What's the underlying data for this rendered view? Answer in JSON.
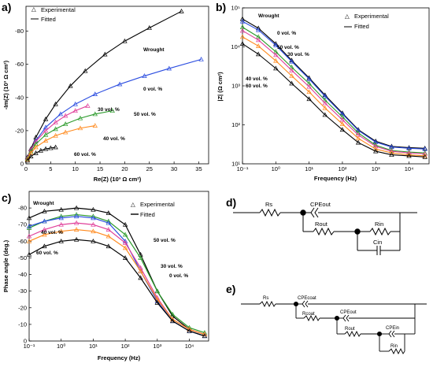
{
  "chart_data": [
    {
      "panel": "a)",
      "type": "scatter",
      "xlabel": "Re(Z) (10³ Ω cm²)",
      "ylabel": "-Im(Z) (10³ Ω cm²)",
      "xlim": [
        0,
        37
      ],
      "ylim": [
        0,
        -95
      ],
      "xticks": [
        0,
        5,
        10,
        15,
        20,
        25,
        30,
        35
      ],
      "yticks": [
        0,
        -20,
        -40,
        -60,
        -80
      ],
      "legend": [
        "Experimental",
        "Fitted"
      ],
      "legend_position": "top-left",
      "series": [
        {
          "name": "Wrought",
          "color": "#000000",
          "x": [
            0.3,
            1,
            2,
            4,
            6,
            9,
            12,
            16,
            20,
            25,
            31.5
          ],
          "y": [
            -4,
            -9,
            -16,
            -27,
            -36,
            -47,
            -56,
            -66,
            -74,
            -82,
            -92
          ]
        },
        {
          "name": "0 vol. %",
          "color": "#2b4de0",
          "x": [
            0.3,
            1,
            2,
            4,
            7,
            10,
            14,
            19,
            24,
            29,
            35.5
          ],
          "y": [
            -3.5,
            -8.5,
            -14,
            -22,
            -30,
            -36,
            -42,
            -48,
            -53,
            -57.5,
            -63
          ]
        },
        {
          "name": "30 vol. %",
          "color": "#e0409a",
          "x": [
            0.3,
            1,
            2,
            4,
            6,
            8,
            10,
            12.5
          ],
          "y": [
            -3.5,
            -8.5,
            -13.5,
            -20,
            -25,
            -29,
            -32,
            -35
          ]
        },
        {
          "name": "50 vol. %",
          "color": "#2a9a2a",
          "x": [
            0.3,
            1,
            2,
            4,
            6,
            8,
            11,
            14,
            17.5
          ],
          "y": [
            -3,
            -7.5,
            -12,
            -17.5,
            -21,
            -24,
            -27.5,
            -30,
            -32
          ]
        },
        {
          "name": "40 vol. %",
          "color": "#ff8a1e",
          "x": [
            0.3,
            1,
            2,
            4,
            6,
            8,
            11,
            14
          ],
          "y": [
            -2.5,
            -6.5,
            -10,
            -14,
            -17,
            -19,
            -21.5,
            -23
          ]
        },
        {
          "name": "60 vol. %",
          "color": "#000000",
          "x": [
            0.3,
            1,
            2,
            3,
            4,
            5,
            6
          ],
          "y": [
            -2,
            -4.5,
            -6.5,
            -8,
            -9,
            -9.5,
            -10
          ]
        }
      ],
      "annotations": [
        "Wrought",
        "0 vol. %",
        "30 vol. %",
        "50 vol. %",
        "40 vol. %",
        "60 vol. %"
      ]
    },
    {
      "panel": "b)",
      "type": "scatter",
      "xlabel": "Frequency (Hz)",
      "ylabel": "|Z| (Ω cm²)",
      "xscale": "log",
      "yscale": "log",
      "xlim": [
        0.1,
        40000
      ],
      "ylim": [
        10,
        100000
      ],
      "xticks": [
        "10⁻¹",
        "10⁰",
        "10¹",
        "10²",
        "10³",
        "10⁴"
      ],
      "yticks": [
        "10¹",
        "10²",
        "10³",
        "10⁴",
        "10⁵"
      ],
      "legend": [
        "Experimental",
        "Fitted"
      ],
      "legend_position": "top-right",
      "series": [
        {
          "name": "Wrought",
          "color": "#000000",
          "x": [
            0.1,
            0.3,
            1,
            3,
            10,
            30,
            100,
            300,
            1000,
            3000,
            10000,
            30000
          ],
          "y": [
            52000,
            30000,
            12000,
            4500,
            1600,
            580,
            200,
            75,
            38,
            28,
            26,
            25
          ]
        },
        {
          "name": "0 vol. %",
          "color": "#2b4de0",
          "x": [
            0.1,
            0.3,
            1,
            3,
            10,
            30,
            100,
            300,
            1000,
            3000,
            10000,
            30000
          ],
          "y": [
            45000,
            27000,
            11000,
            4200,
            1500,
            540,
            190,
            72,
            36,
            27,
            25,
            24
          ]
        },
        {
          "name": "50 vol. %",
          "color": "#2a9a2a",
          "x": [
            0.1,
            0.3,
            1,
            3,
            10,
            30,
            100,
            300,
            1000,
            3000,
            10000,
            30000
          ],
          "y": [
            32000,
            18000,
            7500,
            3000,
            1150,
            430,
            160,
            62,
            30,
            22,
            20,
            19
          ]
        },
        {
          "name": "30 vol. %",
          "color": "#e0409a",
          "x": [
            0.1,
            0.3,
            1,
            3,
            10,
            30,
            100,
            300,
            1000,
            3000,
            10000,
            30000
          ],
          "y": [
            26000,
            15000,
            6200,
            2500,
            950,
            360,
            135,
            55,
            28,
            21,
            19,
            18
          ]
        },
        {
          "name": "40 vol. %",
          "color": "#ff8a1e",
          "x": [
            0.1,
            0.3,
            1,
            3,
            10,
            30,
            100,
            300,
            1000,
            3000,
            10000,
            30000
          ],
          "y": [
            18000,
            10500,
            4400,
            1800,
            700,
            270,
            105,
            45,
            24,
            19,
            17,
            16
          ]
        },
        {
          "name": "60 vol. %",
          "color": "#000000",
          "x": [
            0.1,
            0.3,
            1,
            3,
            10,
            30,
            100,
            300,
            1000,
            3000,
            10000,
            30000
          ],
          "y": [
            12000,
            6500,
            2800,
            1150,
            460,
            180,
            75,
            35,
            21,
            17,
            16,
            15
          ]
        }
      ],
      "annotations": [
        "Wrought",
        "0 vol. %",
        "50 vol. %",
        "30 vol. %",
        "40 vol. %",
        "60 vol. %"
      ]
    },
    {
      "panel": "c)",
      "type": "scatter",
      "xlabel": "Frequency (Hz)",
      "ylabel": "Phase angle (deg.)",
      "xscale": "log",
      "xlim": [
        0.1,
        40000
      ],
      "ylim": [
        0,
        -90
      ],
      "xticks": [
        "10⁻¹",
        "10⁰",
        "10¹",
        "10²",
        "10³",
        "10⁴"
      ],
      "yticks": [
        0,
        -10,
        -20,
        -30,
        -40,
        -50,
        -60,
        -70,
        -80
      ],
      "legend": [
        "Experimental",
        "Fitted"
      ],
      "legend_position": "top-right",
      "series": [
        {
          "name": "Wrought",
          "color": "#000000",
          "x": [
            0.1,
            0.3,
            1,
            3,
            10,
            30,
            100,
            300,
            1000,
            3000,
            10000,
            30000
          ],
          "y": [
            -74,
            -78,
            -79,
            -80,
            -79,
            -77,
            -70,
            -52,
            -30,
            -15,
            -7,
            -4
          ]
        },
        {
          "name": "50 vol. %",
          "color": "#2a9a2a",
          "x": [
            0.1,
            0.3,
            1,
            3,
            10,
            30,
            100,
            300,
            1000,
            3000,
            10000,
            30000
          ],
          "y": [
            -68,
            -72,
            -75,
            -76,
            -75,
            -72,
            -64,
            -50,
            -30,
            -16,
            -8,
            -5
          ]
        },
        {
          "name": "0 vol. %",
          "color": "#2b4de0",
          "x": [
            0.1,
            0.3,
            1,
            3,
            10,
            30,
            100,
            300,
            1000,
            3000,
            10000,
            30000
          ],
          "y": [
            -69,
            -72,
            -74,
            -75,
            -74,
            -71,
            -60,
            -42,
            -24,
            -12,
            -6,
            -3
          ]
        },
        {
          "name": "30 vol. %",
          "color": "#e0409a",
          "x": [
            0.1,
            0.3,
            1,
            3,
            10,
            30,
            100,
            300,
            1000,
            3000,
            10000,
            30000
          ],
          "y": [
            -63,
            -67,
            -70,
            -71,
            -70,
            -67,
            -59,
            -44,
            -26,
            -13,
            -7,
            -4
          ]
        },
        {
          "name": "40 vol. %",
          "color": "#ff8a1e",
          "x": [
            0.1,
            0.3,
            1,
            3,
            10,
            30,
            100,
            300,
            1000,
            3000,
            10000,
            30000
          ],
          "y": [
            -60,
            -64,
            -66,
            -67,
            -66,
            -63,
            -56,
            -42,
            -25,
            -13,
            -7,
            -4
          ]
        },
        {
          "name": "60 vol. %",
          "color": "#000000",
          "x": [
            0.1,
            0.3,
            1,
            3,
            10,
            30,
            100,
            300,
            1000,
            3000,
            10000,
            30000
          ],
          "y": [
            -52,
            -57,
            -60,
            -61,
            -60,
            -57,
            -50,
            -38,
            -23,
            -12,
            -6,
            -3
          ]
        }
      ],
      "annotations": [
        "Wrought",
        "40 vol. %",
        "60 vol. %",
        "50 vol. %",
        "30 vol. %",
        "0 vol. %"
      ]
    }
  ],
  "labels": {
    "panel_a": "a)",
    "panel_b": "b)",
    "panel_c": "c)",
    "panel_d": "d)",
    "panel_e": "e)",
    "legend_exp": "Experimental",
    "legend_fit": "Fitted",
    "a_xlabel": "Re(Z) (10³ Ω cm²)",
    "a_ylabel": "-Im(Z) (10³ Ω cm²)",
    "b_xlabel": "Frequency (Hz)",
    "b_ylabel": "|Z| (Ω cm²)",
    "c_xlabel": "Frequency (Hz)",
    "c_ylabel": "Phase angle (deg.)"
  },
  "circuit_d": {
    "rs": "Rs",
    "cpe_out": "CPEout",
    "r_out": "Rout",
    "r_in": "Rin",
    "c_in": "Cin"
  },
  "circuit_e": {
    "rs": "Rs",
    "cpe_coat": "CPEcoat",
    "r_coat": "Rcoat",
    "cpe_out": "CPEout",
    "r_out": "Rout",
    "cpe_in": "CPEin",
    "r_in": "Rin"
  }
}
